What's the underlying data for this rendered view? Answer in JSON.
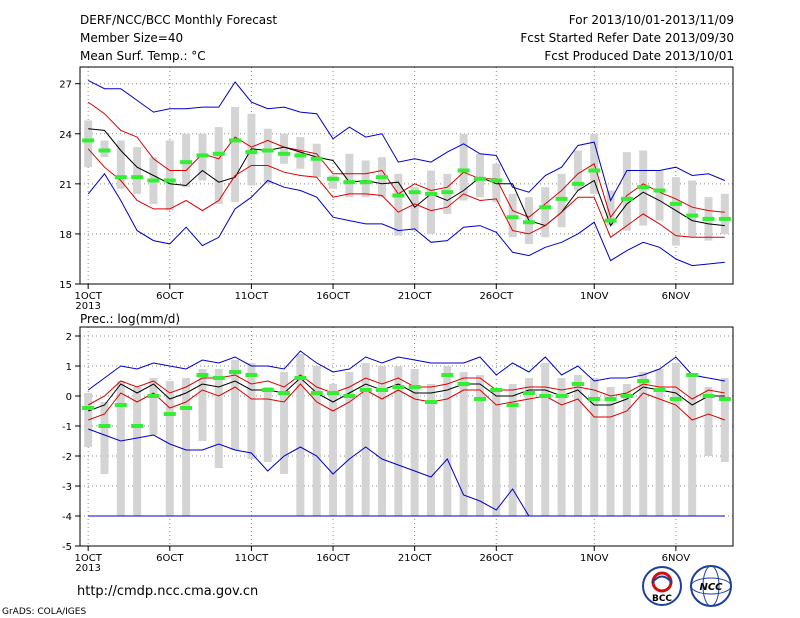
{
  "header": {
    "title": "DERF/NCC/BCC Monthly Forecast",
    "member_size": "Member Size=40",
    "variable": "Mean Surf. Temp.: °C",
    "period": "For 2013/10/01-2013/11/09",
    "refer_date": "Fcst Started Refer Date 2013/09/30",
    "produced_date": "Fcst Produced Date 2013/10/01"
  },
  "footer": {
    "url": "http://cmdp.ncc.cma.gov.cn",
    "credit": "GrADS: COLA/IGES",
    "logo_left": "BCC",
    "logo_right": "NCC"
  },
  "colors": {
    "envelope": "#0000cc",
    "spread": "#dd0000",
    "mean": "#000000",
    "observation": "#33ee33",
    "box": "#d4d4d4"
  },
  "chart_data": [
    {
      "type": "line",
      "title": "",
      "ylabel": "",
      "ylim": [
        15,
        28
      ],
      "yticks": [
        15,
        18,
        21,
        24,
        27
      ],
      "xlim": [
        0.5,
        40.5
      ],
      "grid": true,
      "xticks": [
        {
          "day": 1,
          "label": "1OCT",
          "sublabel": "2013"
        },
        {
          "day": 6,
          "label": "6OCT"
        },
        {
          "day": 11,
          "label": "11OCT"
        },
        {
          "day": 16,
          "label": "16OCT"
        },
        {
          "day": 21,
          "label": "21OCT"
        },
        {
          "day": 26,
          "label": "26OCT"
        },
        {
          "day": 32,
          "label": "1NOV"
        },
        {
          "day": 37,
          "label": "6NOV"
        }
      ],
      "days": [
        1,
        2,
        3,
        4,
        5,
        6,
        7,
        8,
        9,
        10,
        11,
        12,
        13,
        14,
        15,
        16,
        17,
        18,
        19,
        20,
        21,
        22,
        23,
        24,
        25,
        26,
        27,
        28,
        29,
        30,
        31,
        32,
        33,
        34,
        35,
        36,
        37,
        38,
        39,
        40
      ],
      "series": [
        {
          "role": "max",
          "values": [
            27.2,
            26.7,
            26.7,
            26.0,
            25.3,
            25.5,
            25.5,
            25.6,
            25.6,
            27.1,
            25.9,
            25.5,
            25.6,
            25.3,
            25.2,
            23.7,
            24.4,
            23.8,
            24.0,
            22.3,
            22.5,
            22.3,
            22.9,
            23.4,
            22.8,
            22.7,
            20.8,
            20.5,
            21.5,
            22.0,
            23.3,
            23.5,
            20.0,
            21.8,
            21.8,
            21.8,
            22.0,
            21.5,
            21.6,
            21.2
          ]
        },
        {
          "role": "p90",
          "values": [
            25.9,
            25.2,
            24.2,
            23.8,
            22.5,
            21.8,
            21.8,
            22.8,
            22.5,
            23.8,
            23.2,
            23.6,
            23.2,
            23.0,
            22.8,
            21.6,
            21.6,
            21.6,
            21.8,
            20.4,
            21.0,
            20.6,
            20.8,
            21.7,
            21.3,
            21.3,
            19.4,
            19.0,
            19.8,
            20.6,
            21.6,
            22.2,
            19.0,
            20.3,
            21.0,
            20.5,
            20.1,
            19.6,
            19.4,
            19.3
          ]
        },
        {
          "role": "mean",
          "values": [
            24.3,
            24.2,
            23.0,
            22.0,
            21.5,
            21.0,
            20.9,
            21.8,
            21.1,
            21.4,
            23.1,
            23.0,
            23.2,
            22.9,
            22.6,
            22.4,
            21.1,
            21.2,
            21.0,
            21.1,
            19.6,
            20.4,
            20.0,
            20.6,
            21.4,
            21.0,
            21.0,
            18.8,
            18.5,
            19.3,
            20.6,
            21.2,
            18.5,
            19.8,
            20.5,
            20.0,
            19.4,
            18.8,
            18.6,
            18.5
          ]
        },
        {
          "role": "p10",
          "values": [
            23.1,
            22.0,
            21.2,
            20.0,
            19.5,
            19.5,
            20.0,
            19.4,
            20.0,
            21.5,
            22.1,
            22.1,
            21.7,
            21.5,
            21.4,
            20.2,
            20.4,
            20.4,
            20.3,
            19.3,
            19.8,
            19.4,
            19.6,
            20.4,
            20.0,
            20.1,
            18.2,
            18.0,
            18.5,
            19.3,
            20.2,
            20.2,
            17.8,
            18.5,
            19.2,
            18.6,
            17.9,
            17.8,
            17.8,
            17.8
          ]
        },
        {
          "role": "min",
          "values": [
            20.4,
            21.6,
            20.0,
            18.2,
            17.6,
            17.4,
            18.4,
            17.3,
            17.8,
            19.5,
            20.2,
            21.2,
            20.8,
            20.6,
            20.2,
            19.0,
            18.8,
            18.6,
            18.6,
            18.2,
            18.3,
            17.5,
            17.6,
            18.4,
            18.5,
            18.1,
            16.9,
            16.7,
            17.2,
            17.5,
            18.0,
            18.7,
            16.4,
            17.0,
            17.5,
            17.2,
            16.5,
            16.1,
            16.2,
            16.3
          ]
        }
      ],
      "boxes": [
        [
          22,
          24.8
        ],
        [
          22.6,
          23.6
        ],
        [
          20.7,
          23.6
        ],
        [
          20.4,
          23.2
        ],
        [
          19.8,
          22.6
        ],
        [
          19.4,
          23.6
        ],
        [
          20.8,
          24.0
        ],
        [
          21.2,
          24.0
        ],
        [
          19.8,
          24.4
        ],
        [
          19.9,
          25.6
        ],
        [
          20.9,
          25.2
        ],
        [
          21.0,
          24.3
        ],
        [
          22.2,
          24.0
        ],
        [
          21.9,
          23.8
        ],
        [
          21.4,
          23.4
        ],
        [
          20.7,
          21.5
        ],
        [
          20.2,
          22.8
        ],
        [
          20.2,
          22.4
        ],
        [
          20.2,
          22.6
        ],
        [
          17.9,
          21.6
        ],
        [
          18.2,
          20.8
        ],
        [
          18.0,
          21.8
        ],
        [
          19.2,
          21.6
        ],
        [
          20.0,
          24.0
        ],
        [
          20.2,
          22.8
        ],
        [
          19.9,
          22.2
        ],
        [
          17.8,
          20.4
        ],
        [
          17.4,
          20.2
        ],
        [
          17.8,
          20.8
        ],
        [
          18.4,
          21.6
        ],
        [
          20.6,
          23.0
        ],
        [
          20.4,
          24.0
        ],
        [
          18.5,
          20.6
        ],
        [
          18.2,
          22.9
        ],
        [
          18.5,
          23.0
        ],
        [
          18.8,
          21.8
        ],
        [
          17.3,
          21.4
        ],
        [
          17.8,
          21.2
        ],
        [
          17.6,
          20.2
        ],
        [
          18.0,
          20.4
        ]
      ],
      "observed": [
        23.6,
        23.0,
        21.4,
        21.4,
        21.2,
        21.2,
        22.3,
        22.7,
        22.8,
        23.6,
        22.9,
        23.0,
        22.8,
        22.7,
        22.5,
        21.3,
        21.1,
        21.1,
        21.4,
        20.3,
        20.5,
        20.4,
        20.5,
        21.8,
        21.3,
        21.2,
        19.0,
        18.7,
        19.6,
        20.1,
        21.0,
        21.8,
        18.8,
        20.1,
        20.8,
        20.6,
        19.8,
        19.1,
        18.9,
        18.9
      ]
    },
    {
      "type": "line",
      "title": "",
      "ylabel": "Prec.: log(mm/d)",
      "ylim": [
        -5,
        2.3
      ],
      "yticks": [
        -5,
        -4,
        -3,
        -2,
        -1,
        0,
        1,
        2
      ],
      "xlim": [
        0.5,
        40.5
      ],
      "grid": true,
      "xticks": [
        {
          "day": 1,
          "label": "1OCT",
          "sublabel": "2013"
        },
        {
          "day": 6,
          "label": "6OCT"
        },
        {
          "day": 11,
          "label": "11OCT"
        },
        {
          "day": 16,
          "label": "16OCT"
        },
        {
          "day": 21,
          "label": "21OCT"
        },
        {
          "day": 26,
          "label": "26OCT"
        },
        {
          "day": 32,
          "label": "1NOV"
        },
        {
          "day": 37,
          "label": "6NOV"
        }
      ],
      "days": [
        1,
        2,
        3,
        4,
        5,
        6,
        7,
        8,
        9,
        10,
        11,
        12,
        13,
        14,
        15,
        16,
        17,
        18,
        19,
        20,
        21,
        22,
        23,
        24,
        25,
        26,
        27,
        28,
        29,
        30,
        31,
        32,
        33,
        34,
        35,
        36,
        37,
        38,
        39,
        40
      ],
      "series": [
        {
          "role": "max",
          "values": [
            0.2,
            0.6,
            1.0,
            0.9,
            1.1,
            1.0,
            0.9,
            1.2,
            1.1,
            1.3,
            1.0,
            1.0,
            0.9,
            1.5,
            1.1,
            0.8,
            0.9,
            1.3,
            1.1,
            1.3,
            1.2,
            1.1,
            1.1,
            1.1,
            1.3,
            0.7,
            1.1,
            0.8,
            1.3,
            0.7,
            1.0,
            0.5,
            0.6,
            0.6,
            0.7,
            0.9,
            1.3,
            0.7,
            0.6,
            0.5
          ]
        },
        {
          "role": "p90",
          "values": [
            -0.3,
            0.0,
            0.5,
            0.3,
            0.5,
            0.1,
            0.3,
            0.6,
            0.6,
            0.7,
            0.4,
            0.5,
            0.3,
            0.7,
            0.3,
            0.1,
            0.3,
            0.6,
            0.4,
            0.6,
            0.3,
            0.3,
            0.4,
            0.6,
            0.6,
            0.2,
            0.2,
            0.3,
            0.3,
            0.2,
            0.3,
            0.2,
            0.0,
            0.1,
            0.4,
            0.3,
            0.3,
            -0.1,
            0.2,
            0.1
          ]
        },
        {
          "role": "mean",
          "values": [
            -0.5,
            -0.3,
            0.4,
            0.1,
            0.4,
            -0.1,
            0.1,
            0.4,
            0.3,
            0.5,
            0.2,
            0.2,
            0.1,
            0.6,
            0.1,
            -0.2,
            0.1,
            0.4,
            0.2,
            0.4,
            0.1,
            0.1,
            0.2,
            0.4,
            0.4,
            0.0,
            0.0,
            0.2,
            0.2,
            0.0,
            0.2,
            -0.3,
            -0.3,
            -0.1,
            0.3,
            0.2,
            0.1,
            -0.3,
            0.0,
            0.0
          ]
        },
        {
          "role": "p10",
          "values": [
            -0.8,
            -0.6,
            0.1,
            -0.2,
            0.1,
            -0.4,
            -0.2,
            0.2,
            0.0,
            0.3,
            -0.1,
            -0.1,
            -0.2,
            0.4,
            -0.2,
            -0.5,
            -0.2,
            0.2,
            -0.1,
            0.2,
            -0.1,
            -0.2,
            -0.1,
            0.2,
            0.2,
            -0.3,
            -0.2,
            -0.1,
            0.0,
            -0.3,
            -0.1,
            -0.7,
            -0.7,
            -0.5,
            0.1,
            -0.1,
            -0.3,
            -0.8,
            -0.6,
            -0.8
          ]
        },
        {
          "role": "min",
          "values": [
            -1.1,
            -1.3,
            -1.5,
            -1.4,
            -1.3,
            -1.6,
            -1.8,
            -1.8,
            -1.6,
            -1.8,
            -1.9,
            -2.5,
            -2.0,
            -1.7,
            -2.0,
            -2.6,
            -2.1,
            -1.7,
            -2.1,
            -2.3,
            -2.5,
            -2.7,
            -2.1,
            -3.3,
            -3.5,
            -3.8,
            -3.1,
            -4.0,
            -4.0,
            -4.0,
            -4.0,
            -4.0,
            -4.0,
            -4.0,
            -4.0,
            -4.0,
            -4.0,
            -4.0,
            -4.0,
            -4.0
          ]
        },
        {
          "role": "floor",
          "values": [
            -4.0,
            -4.0,
            -4.0,
            -4.0,
            -4.0,
            -4.0,
            -4.0,
            -4.0,
            -4.0,
            -4.0,
            -4.0,
            -4.0,
            -4.0,
            -4.0,
            -4.0,
            -4.0,
            -4.0,
            -4.0,
            -4.0,
            -4.0,
            -4.0,
            -4.0,
            -4.0,
            -4.0,
            -4.0,
            -4.0,
            -4.0,
            -4.0,
            -4.0,
            -4.0,
            -4.0,
            -4.0,
            -4.0,
            -4.0,
            -4.0,
            -4.0,
            -4.0,
            -4.0,
            -4.0,
            -4.0
          ]
        }
      ],
      "boxes": [
        [
          -1.7,
          0.1
        ],
        [
          -2.6,
          -0.2
        ],
        [
          -4.0,
          0.5
        ],
        [
          -4.0,
          0.3
        ],
        [
          -1.3,
          0.6
        ],
        [
          -4.0,
          0.5
        ],
        [
          -4.0,
          0.6
        ],
        [
          -1.5,
          0.9
        ],
        [
          -2.4,
          0.9
        ],
        [
          -1.8,
          1.2
        ],
        [
          -2.1,
          1.1
        ],
        [
          -2.2,
          0.3
        ],
        [
          -2.6,
          0.8
        ],
        [
          -4.0,
          1.4
        ],
        [
          -4.0,
          1.0
        ],
        [
          -4.0,
          0.4
        ],
        [
          -4.0,
          0.8
        ],
        [
          -4.0,
          1.1
        ],
        [
          -4.0,
          1.0
        ],
        [
          -4.0,
          1.0
        ],
        [
          -4.0,
          0.9
        ],
        [
          -4.0,
          0.4
        ],
        [
          -4.0,
          1.0
        ],
        [
          -4.0,
          0.8
        ],
        [
          -4.0,
          0.7
        ],
        [
          -4.0,
          0.2
        ],
        [
          -4.0,
          0.4
        ],
        [
          -4.0,
          0.6
        ],
        [
          -4.0,
          1.1
        ],
        [
          -4.0,
          0.6
        ],
        [
          -4.0,
          0.7
        ],
        [
          -4.0,
          0.6
        ],
        [
          -4.0,
          0.3
        ],
        [
          -4.0,
          0.4
        ],
        [
          -4.0,
          0.8
        ],
        [
          -4.0,
          0.9
        ],
        [
          -4.0,
          1.1
        ],
        [
          -4.0,
          0.7
        ],
        [
          -2.0,
          0.3
        ],
        [
          -2.2,
          0.6
        ]
      ],
      "observed": [
        -0.4,
        -1.0,
        -0.3,
        -1.0,
        0.0,
        -0.6,
        -0.4,
        0.7,
        0.6,
        0.8,
        0.7,
        0.2,
        0.1,
        0.6,
        0.1,
        0.1,
        0.0,
        0.2,
        0.2,
        0.3,
        0.3,
        -0.2,
        0.7,
        0.4,
        -0.1,
        0.2,
        -0.3,
        0.1,
        0.0,
        0.0,
        0.4,
        -0.1,
        -0.1,
        0.0,
        0.5,
        0.2,
        -0.1,
        0.7,
        0.0,
        -0.1
      ]
    }
  ]
}
